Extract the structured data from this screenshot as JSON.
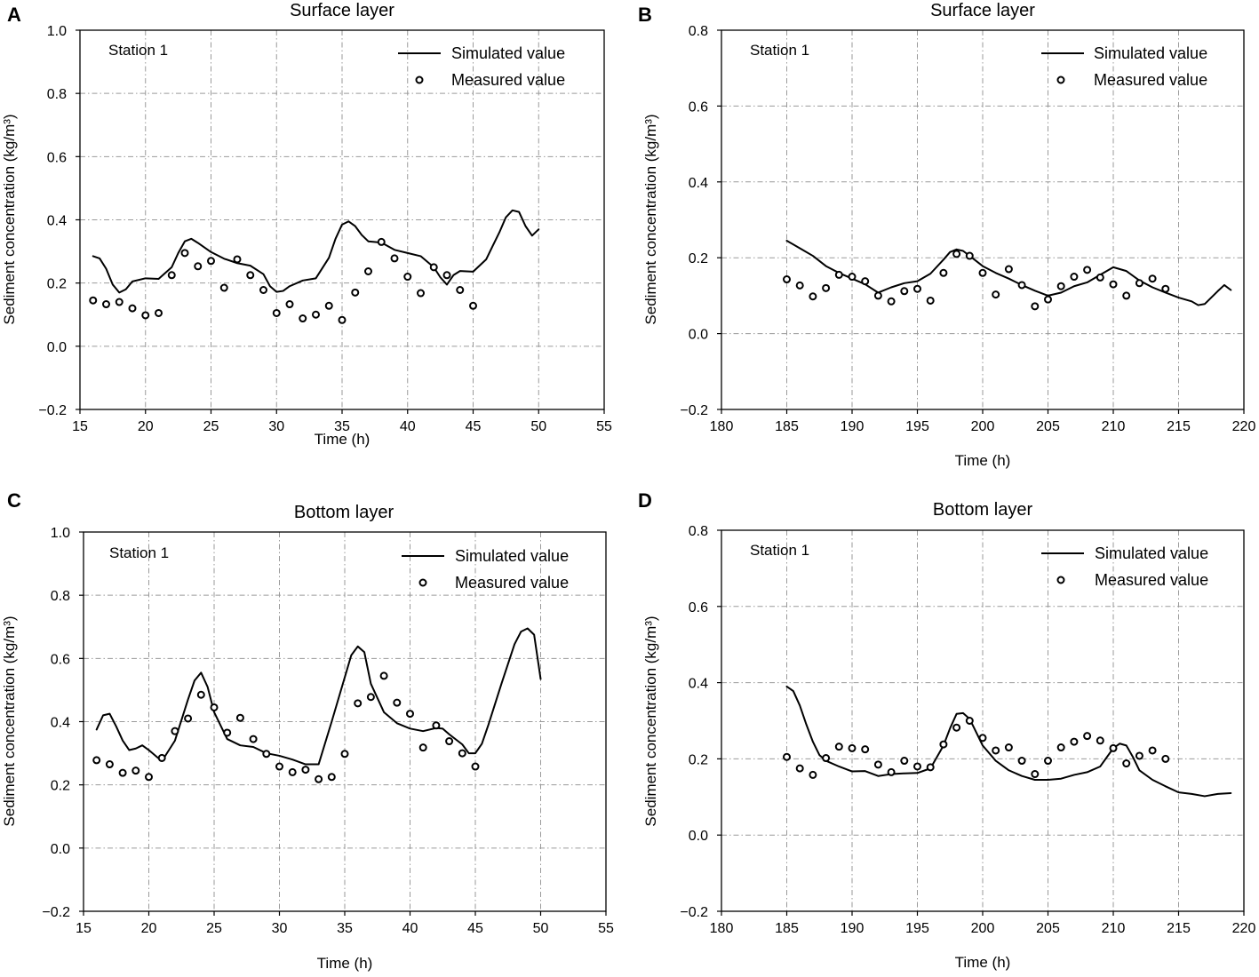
{
  "chart_data": [
    {
      "type": "line",
      "panel_letter": "A",
      "title": "Surface layer",
      "station_label": "Station 1",
      "xlabel": "Time (h)",
      "ylabel": "Sediment concentration (kg/m³)",
      "xlim": [
        15,
        55
      ],
      "ylim": [
        -0.2,
        1.0
      ],
      "xticks": [
        15,
        20,
        25,
        30,
        35,
        40,
        45,
        50,
        55
      ],
      "yticks": [
        -0.2,
        0.0,
        0.2,
        0.4,
        0.6,
        0.8,
        1.0
      ],
      "ytick_labels": [
        "−0.2",
        "0.0",
        "0.2",
        "0.4",
        "0.6",
        "0.8",
        "1.0"
      ],
      "grid": true,
      "legend": "top-right",
      "series": [
        {
          "name": "Simulated value",
          "style": "line",
          "x": [
            16,
            16.5,
            17,
            17.5,
            18,
            18.5,
            19,
            20,
            21,
            22,
            22.5,
            23,
            23.5,
            24,
            25,
            26,
            27,
            28,
            29,
            29.5,
            30,
            30.5,
            31,
            32,
            33,
            34,
            34.5,
            35,
            35.5,
            36,
            36.5,
            37,
            38,
            39,
            40,
            41,
            42,
            42.5,
            43,
            43.5,
            44,
            45,
            46,
            46.5,
            47,
            47.5,
            48,
            48.5,
            49,
            49.5,
            50
          ],
          "y": [
            0.285,
            0.278,
            0.245,
            0.195,
            0.17,
            0.18,
            0.205,
            0.215,
            0.213,
            0.25,
            0.295,
            0.332,
            0.34,
            0.327,
            0.298,
            0.277,
            0.263,
            0.255,
            0.228,
            0.19,
            0.172,
            0.175,
            0.19,
            0.208,
            0.215,
            0.28,
            0.34,
            0.385,
            0.395,
            0.38,
            0.352,
            0.332,
            0.328,
            0.305,
            0.295,
            0.285,
            0.25,
            0.218,
            0.195,
            0.225,
            0.238,
            0.236,
            0.275,
            0.318,
            0.36,
            0.408,
            0.43,
            0.425,
            0.38,
            0.35,
            0.37
          ]
        },
        {
          "name": "Measured value",
          "style": "circle",
          "x": [
            16,
            17,
            18,
            19,
            20,
            21,
            22,
            23,
            24,
            25,
            26,
            27,
            28,
            29,
            30,
            31,
            32,
            33,
            34,
            35,
            36,
            37,
            38,
            39,
            40,
            41,
            42,
            43,
            44,
            45
          ],
          "y": [
            0.145,
            0.133,
            0.14,
            0.12,
            0.098,
            0.105,
            0.225,
            0.295,
            0.253,
            0.27,
            0.185,
            0.275,
            0.225,
            0.178,
            0.105,
            0.133,
            0.088,
            0.1,
            0.128,
            0.083,
            0.17,
            0.237,
            0.33,
            0.278,
            0.22,
            0.168,
            0.25,
            0.225,
            0.178,
            0.128
          ]
        }
      ]
    },
    {
      "type": "line",
      "panel_letter": "B",
      "title": "Surface layer",
      "station_label": "Station 1",
      "xlabel": "Time (h)",
      "ylabel": "Sediment concentration (kg/m³)",
      "xlim": [
        180,
        220
      ],
      "ylim": [
        -0.2,
        0.8
      ],
      "xticks": [
        180,
        185,
        190,
        195,
        200,
        205,
        210,
        215,
        220
      ],
      "yticks": [
        -0.2,
        0.0,
        0.2,
        0.4,
        0.6,
        0.8
      ],
      "ytick_labels": [
        "−0.2",
        "0.0",
        "0.2",
        "0.4",
        "0.6",
        "0.8"
      ],
      "grid": true,
      "legend": "top-right",
      "series": [
        {
          "name": "Simulated value",
          "style": "line",
          "x": [
            185,
            186,
            187,
            188,
            189,
            190,
            191,
            192,
            193,
            194,
            195,
            196,
            197,
            197.5,
            198,
            198.5,
            199,
            200,
            201,
            202,
            203,
            204,
            205,
            206,
            207,
            208,
            209,
            210,
            211,
            212,
            213,
            214,
            215,
            216,
            216.5,
            217,
            218,
            218.5,
            219
          ],
          "y": [
            0.245,
            0.225,
            0.205,
            0.178,
            0.16,
            0.145,
            0.13,
            0.108,
            0.122,
            0.133,
            0.138,
            0.158,
            0.195,
            0.215,
            0.222,
            0.218,
            0.205,
            0.178,
            0.16,
            0.145,
            0.128,
            0.113,
            0.1,
            0.108,
            0.125,
            0.135,
            0.155,
            0.175,
            0.165,
            0.14,
            0.122,
            0.108,
            0.095,
            0.085,
            0.075,
            0.078,
            0.112,
            0.128,
            0.115
          ]
        },
        {
          "name": "Measured value",
          "style": "circle",
          "x": [
            185,
            186,
            187,
            188,
            189,
            190,
            191,
            192,
            193,
            194,
            195,
            196,
            197,
            198,
            199,
            200,
            201,
            202,
            203,
            204,
            205,
            206,
            207,
            208,
            209,
            210,
            211,
            212,
            213,
            214
          ],
          "y": [
            0.143,
            0.127,
            0.098,
            0.12,
            0.155,
            0.15,
            0.138,
            0.1,
            0.085,
            0.112,
            0.118,
            0.087,
            0.16,
            0.21,
            0.205,
            0.16,
            0.103,
            0.17,
            0.128,
            0.072,
            0.09,
            0.125,
            0.15,
            0.168,
            0.148,
            0.13,
            0.1,
            0.133,
            0.145,
            0.118
          ]
        }
      ]
    },
    {
      "type": "line",
      "panel_letter": "C",
      "title": "Bottom layer",
      "station_label": "Station 1",
      "xlabel": "Time (h)",
      "ylabel": "Sediment concentration (kg/m³)",
      "xlim": [
        15,
        55
      ],
      "ylim": [
        -0.2,
        1.0
      ],
      "xticks": [
        15,
        20,
        25,
        30,
        35,
        40,
        45,
        50,
        55
      ],
      "yticks": [
        -0.2,
        0.0,
        0.2,
        0.4,
        0.6,
        0.8,
        1.0
      ],
      "ytick_labels": [
        "−0.2",
        "0.0",
        "0.2",
        "0.4",
        "0.6",
        "0.8",
        "1.0"
      ],
      "grid": true,
      "legend": "top-right",
      "series": [
        {
          "name": "Simulated value",
          "style": "line",
          "x": [
            16,
            16.5,
            17,
            17.5,
            18,
            18.5,
            19,
            19.5,
            20,
            21,
            22,
            23,
            23.5,
            24,
            24.5,
            25,
            26,
            27,
            28,
            29,
            30,
            31,
            32,
            33,
            34,
            35,
            35.5,
            36,
            36.5,
            37,
            38,
            39,
            40,
            41,
            42,
            42.5,
            43,
            44,
            44.5,
            45,
            45.5,
            46,
            47,
            48,
            48.5,
            49,
            49.5,
            50
          ],
          "y": [
            0.375,
            0.42,
            0.425,
            0.385,
            0.34,
            0.31,
            0.315,
            0.325,
            0.31,
            0.275,
            0.34,
            0.47,
            0.53,
            0.555,
            0.51,
            0.43,
            0.345,
            0.325,
            0.32,
            0.3,
            0.292,
            0.28,
            0.265,
            0.265,
            0.4,
            0.54,
            0.61,
            0.638,
            0.62,
            0.52,
            0.43,
            0.395,
            0.378,
            0.37,
            0.38,
            0.378,
            0.36,
            0.328,
            0.3,
            0.3,
            0.33,
            0.39,
            0.52,
            0.645,
            0.685,
            0.695,
            0.675,
            0.535
          ]
        },
        {
          "name": "Measured value",
          "style": "circle",
          "x": [
            16,
            17,
            18,
            19,
            20,
            21,
            22,
            23,
            24,
            25,
            26,
            27,
            28,
            29,
            30,
            31,
            32,
            33,
            34,
            35,
            36,
            37,
            38,
            39,
            40,
            41,
            42,
            43,
            44,
            45
          ],
          "y": [
            0.278,
            0.265,
            0.238,
            0.245,
            0.225,
            0.285,
            0.37,
            0.41,
            0.485,
            0.445,
            0.365,
            0.412,
            0.345,
            0.298,
            0.258,
            0.24,
            0.248,
            0.218,
            0.225,
            0.298,
            0.458,
            0.478,
            0.545,
            0.46,
            0.425,
            0.318,
            0.388,
            0.338,
            0.3,
            0.258
          ]
        }
      ]
    },
    {
      "type": "line",
      "panel_letter": "D",
      "title": "Bottom layer",
      "station_label": "Station 1",
      "xlabel": "Time (h)",
      "ylabel": "Sediment concentration (kg/m³)",
      "xlim": [
        180,
        220
      ],
      "ylim": [
        -0.2,
        0.8
      ],
      "xticks": [
        180,
        185,
        190,
        195,
        200,
        205,
        210,
        215,
        220
      ],
      "yticks": [
        -0.2,
        0.0,
        0.2,
        0.4,
        0.6,
        0.8
      ],
      "ytick_labels": [
        "−0.2",
        "0.0",
        "0.2",
        "0.4",
        "0.6",
        "0.8"
      ],
      "grid": true,
      "legend": "top-right",
      "series": [
        {
          "name": "Simulated value",
          "style": "line",
          "x": [
            185,
            185.5,
            186,
            186.5,
            187,
            187.5,
            188,
            189,
            190,
            191,
            192,
            193,
            194,
            195,
            196,
            197,
            197.5,
            198,
            198.5,
            199,
            199.5,
            200,
            201,
            202,
            203,
            204,
            205,
            206,
            207,
            208,
            209,
            210,
            210.5,
            211,
            211.5,
            212,
            213,
            214,
            215,
            216,
            217,
            218,
            219
          ],
          "y": [
            0.39,
            0.378,
            0.34,
            0.29,
            0.245,
            0.21,
            0.195,
            0.18,
            0.167,
            0.168,
            0.155,
            0.16,
            0.162,
            0.163,
            0.175,
            0.235,
            0.28,
            0.318,
            0.32,
            0.305,
            0.27,
            0.235,
            0.195,
            0.17,
            0.155,
            0.145,
            0.145,
            0.148,
            0.158,
            0.165,
            0.18,
            0.228,
            0.24,
            0.235,
            0.205,
            0.17,
            0.145,
            0.128,
            0.112,
            0.108,
            0.102,
            0.108,
            0.11
          ]
        },
        {
          "name": "Measured value",
          "style": "circle",
          "x": [
            185,
            186,
            187,
            188,
            189,
            190,
            191,
            192,
            193,
            194,
            195,
            196,
            197,
            198,
            199,
            200,
            201,
            202,
            203,
            204,
            205,
            206,
            207,
            208,
            209,
            210,
            211,
            212,
            213,
            214
          ],
          "y": [
            0.205,
            0.175,
            0.158,
            0.202,
            0.232,
            0.228,
            0.225,
            0.185,
            0.165,
            0.195,
            0.18,
            0.178,
            0.238,
            0.282,
            0.3,
            0.255,
            0.222,
            0.23,
            0.195,
            0.16,
            0.195,
            0.23,
            0.245,
            0.26,
            0.248,
            0.228,
            0.188,
            0.208,
            0.222,
            0.2
          ]
        }
      ]
    }
  ]
}
